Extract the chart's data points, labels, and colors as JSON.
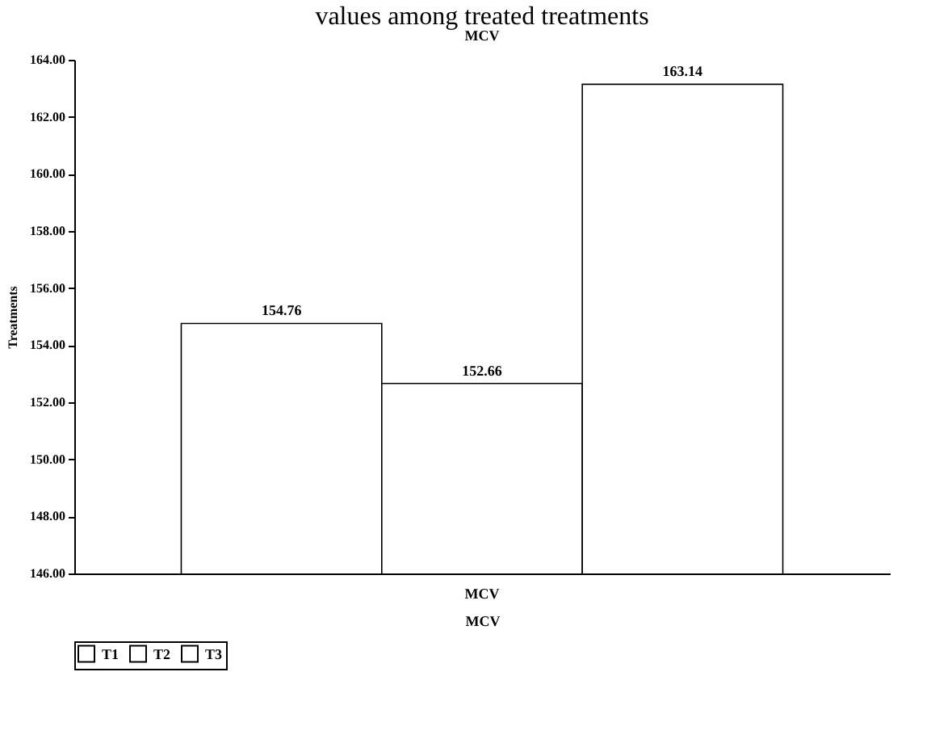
{
  "chart_data": {
    "type": "bar",
    "title": "values among treated treatments",
    "subtitle": "MCV",
    "xlabel": "MCV",
    "ylabel": "Treatments",
    "categories": [
      "MCV"
    ],
    "series": [
      {
        "name": "T1",
        "color": "#ffffff",
        "values": [
          154.76
        ]
      },
      {
        "name": "T2",
        "color": "#ffffff",
        "values": [
          152.66
        ]
      },
      {
        "name": "T3",
        "color": "#ffffff",
        "values": [
          163.14
        ]
      }
    ],
    "ylim": [
      146,
      164
    ],
    "yticks": [
      {
        "value": 146,
        "label": "146.00"
      },
      {
        "value": 148,
        "label": "148.00"
      },
      {
        "value": 150,
        "label": "150.00"
      },
      {
        "value": 152,
        "label": "152.00"
      },
      {
        "value": 154,
        "label": "154.00"
      },
      {
        "value": 156,
        "label": "156.00"
      },
      {
        "value": 158,
        "label": "158.00"
      },
      {
        "value": 160,
        "label": "160.00"
      },
      {
        "value": 162,
        "label": "162.00"
      },
      {
        "value": 164,
        "label": "164.00"
      }
    ],
    "data_labels": true,
    "legend": "bottom",
    "grid": false
  }
}
